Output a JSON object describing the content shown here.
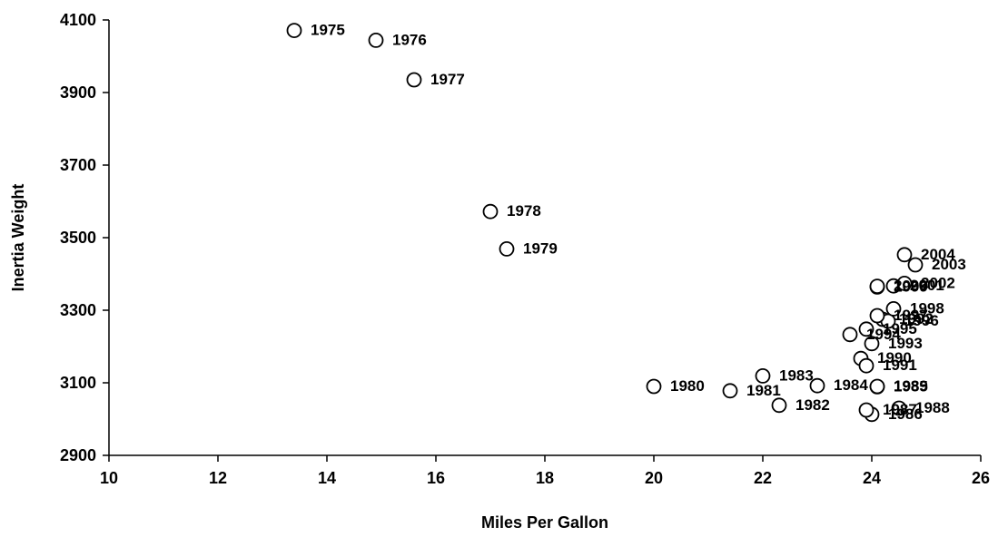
{
  "chart_data": {
    "type": "scatter",
    "xlabel": "Miles Per Gallon",
    "ylabel": "Inertia Weight",
    "xlim": [
      10,
      26
    ],
    "ylim": [
      2900,
      4100
    ],
    "x_ticks": [
      "10",
      "12",
      "14",
      "16",
      "18",
      "20",
      "22",
      "24",
      "26"
    ],
    "y_ticks": [
      "2900",
      "3100",
      "3300",
      "3500",
      "3700",
      "3900",
      "4100"
    ],
    "grid": false,
    "legend": "none",
    "marker_fill": "#ffffff",
    "marker_stroke": "#000000",
    "points": [
      {
        "label": "1975",
        "x": 13.4,
        "y": 4071
      },
      {
        "label": "1976",
        "x": 14.9,
        "y": 4044
      },
      {
        "label": "1977",
        "x": 15.6,
        "y": 3935
      },
      {
        "label": "1978",
        "x": 17.0,
        "y": 3572
      },
      {
        "label": "1979",
        "x": 17.3,
        "y": 3469
      },
      {
        "label": "1980",
        "x": 20.0,
        "y": 3090
      },
      {
        "label": "1981",
        "x": 21.4,
        "y": 3078
      },
      {
        "label": "1982",
        "x": 22.3,
        "y": 3038
      },
      {
        "label": "1983",
        "x": 22.0,
        "y": 3119
      },
      {
        "label": "1984",
        "x": 23.0,
        "y": 3092
      },
      {
        "label": "1985",
        "x": 24.1,
        "y": 3089
      },
      {
        "label": "1986",
        "x": 24.0,
        "y": 3013
      },
      {
        "label": "1987",
        "x": 23.9,
        "y": 3025
      },
      {
        "label": "1988",
        "x": 24.5,
        "y": 3030
      },
      {
        "label": "1989",
        "x": 24.1,
        "y": 3090
      },
      {
        "label": "1990",
        "x": 23.8,
        "y": 3167
      },
      {
        "label": "1991",
        "x": 23.9,
        "y": 3147
      },
      {
        "label": "1992",
        "x": 24.2,
        "y": 3275
      },
      {
        "label": "1993",
        "x": 24.0,
        "y": 3208
      },
      {
        "label": "1994",
        "x": 23.6,
        "y": 3233
      },
      {
        "label": "1995",
        "x": 23.9,
        "y": 3248
      },
      {
        "label": "1996",
        "x": 24.3,
        "y": 3270
      },
      {
        "label": "1997",
        "x": 24.1,
        "y": 3285
      },
      {
        "label": "1998",
        "x": 24.4,
        "y": 3304
      },
      {
        "label": "1999",
        "x": 24.1,
        "y": 3364
      },
      {
        "label": "2000",
        "x": 24.1,
        "y": 3366
      },
      {
        "label": "2001",
        "x": 24.4,
        "y": 3367
      },
      {
        "label": "2002",
        "x": 24.6,
        "y": 3374
      },
      {
        "label": "2003",
        "x": 24.8,
        "y": 3425
      },
      {
        "label": "2004",
        "x": 24.6,
        "y": 3453
      }
    ]
  }
}
